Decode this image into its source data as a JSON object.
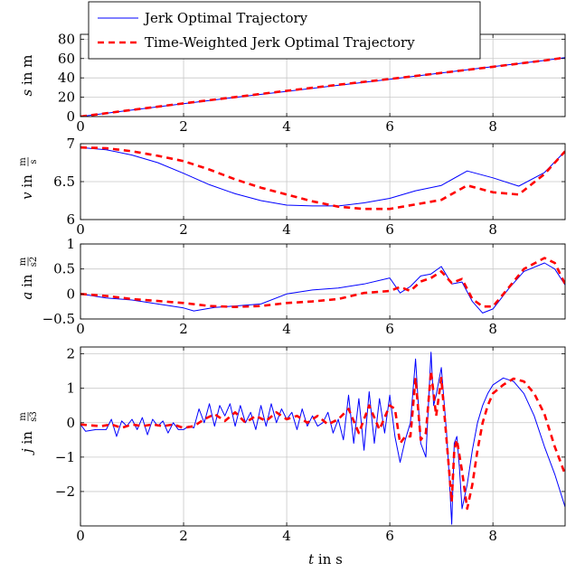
{
  "legend": [
    {
      "label": "Jerk Optimal Trajectory",
      "color": "#0000ff",
      "dash": false
    },
    {
      "label": "Time-Weighted Jerk Optimal Trajectory",
      "color": "#ff0000",
      "dash": true
    }
  ],
  "xaxis": {
    "label": "t",
    "unit": "s",
    "ticks": [
      "0",
      "2",
      "4",
      "6",
      "8"
    ]
  },
  "chart_data": [
    {
      "type": "line",
      "ylabel": {
        "var": "s",
        "unit": "m"
      },
      "xlim": [
        0,
        9.4
      ],
      "ylim": [
        0,
        85
      ],
      "yticks": [
        0,
        20,
        40,
        60,
        80
      ],
      "ytick_labels": [
        "0",
        "20",
        "40",
        "60",
        "80"
      ],
      "grid": true,
      "series": [
        {
          "name": "Jerk Optimal Trajectory",
          "color": "#0000ff",
          "x": [
            0,
            1,
            2,
            3,
            4,
            5,
            6,
            7,
            8,
            9,
            9.4
          ],
          "y": [
            0,
            6.8,
            13.4,
            19.8,
            26.1,
            32.3,
            38.6,
            45.1,
            51.6,
            58.0,
            61.0
          ]
        },
        {
          "name": "Time-Weighted Jerk Optimal Trajectory",
          "color": "#ff0000",
          "dashed": true,
          "x": [
            0,
            1,
            2,
            3,
            4,
            5,
            6,
            7,
            8,
            9,
            9.4
          ],
          "y": [
            0,
            6.9,
            13.6,
            20.2,
            26.6,
            32.9,
            38.9,
            45.1,
            51.5,
            58.0,
            61.0
          ]
        }
      ]
    },
    {
      "type": "line",
      "ylabel": {
        "var": "v",
        "unit_num": "m",
        "unit_den": "s"
      },
      "xlim": [
        0,
        9.4
      ],
      "ylim": [
        6,
        7
      ],
      "yticks": [
        6,
        6.5,
        7
      ],
      "ytick_labels": [
        "6",
        "6.5",
        "7"
      ],
      "grid": true,
      "series": [
        {
          "name": "Jerk Optimal Trajectory",
          "color": "#0000ff",
          "x": [
            0,
            0.5,
            1,
            1.5,
            2,
            2.5,
            3,
            3.5,
            4,
            4.5,
            5,
            5.5,
            6,
            6.5,
            7,
            7.5,
            8,
            8.5,
            9,
            9.4
          ],
          "y": [
            6.95,
            6.92,
            6.85,
            6.75,
            6.61,
            6.46,
            6.34,
            6.25,
            6.19,
            6.18,
            6.18,
            6.22,
            6.28,
            6.38,
            6.45,
            6.64,
            6.55,
            6.44,
            6.62,
            6.9
          ]
        },
        {
          "name": "Time-Weighted Jerk Optimal Trajectory",
          "color": "#ff0000",
          "dashed": true,
          "x": [
            0,
            0.5,
            1,
            1.5,
            2,
            2.5,
            3,
            3.5,
            4,
            4.5,
            5,
            5.5,
            6,
            6.5,
            7,
            7.5,
            8,
            8.5,
            9,
            9.4
          ],
          "y": [
            6.95,
            6.94,
            6.9,
            6.84,
            6.77,
            6.66,
            6.53,
            6.42,
            6.33,
            6.24,
            6.17,
            6.14,
            6.14,
            6.2,
            6.26,
            6.45,
            6.36,
            6.33,
            6.6,
            6.9
          ]
        }
      ]
    },
    {
      "type": "line",
      "ylabel": {
        "var": "a",
        "unit_num": "m",
        "unit_den": "s2"
      },
      "xlim": [
        0,
        9.4
      ],
      "ylim": [
        -0.5,
        1
      ],
      "yticks": [
        -0.5,
        0,
        0.5,
        1
      ],
      "ytick_labels": [
        "−0.5",
        "0",
        "0.5",
        "1"
      ],
      "grid": true,
      "series": [
        {
          "name": "Jerk Optimal Trajectory",
          "color": "#0000ff",
          "x": [
            0,
            0.5,
            1,
            1.5,
            2,
            2.2,
            2.6,
            3,
            3.5,
            4,
            4.5,
            5,
            5.5,
            6,
            6.2,
            6.4,
            6.6,
            6.8,
            7,
            7.2,
            7.4,
            7.6,
            7.8,
            8,
            8.3,
            8.6,
            9,
            9.2,
            9.4
          ],
          "y": [
            0,
            -0.08,
            -0.12,
            -0.2,
            -0.28,
            -0.34,
            -0.27,
            -0.24,
            -0.2,
            0,
            0.08,
            0.12,
            0.2,
            0.32,
            0.02,
            0.15,
            0.36,
            0.4,
            0.55,
            0.2,
            0.24,
            -0.15,
            -0.38,
            -0.3,
            0.1,
            0.45,
            0.62,
            0.5,
            0.18
          ]
        },
        {
          "name": "Time-Weighted Jerk Optimal Trajectory",
          "color": "#ff0000",
          "dashed": true,
          "x": [
            0,
            0.5,
            1,
            1.5,
            2,
            2.5,
            3,
            3.5,
            4,
            4.5,
            5,
            5.5,
            6,
            6.2,
            6.4,
            6.6,
            6.8,
            7,
            7.2,
            7.4,
            7.6,
            7.8,
            8,
            8.3,
            8.6,
            9,
            9.2,
            9.4
          ],
          "y": [
            0,
            -0.04,
            -0.1,
            -0.14,
            -0.18,
            -0.24,
            -0.26,
            -0.24,
            -0.18,
            -0.15,
            -0.1,
            0.02,
            0.06,
            0.14,
            0.06,
            0.25,
            0.32,
            0.45,
            0.22,
            0.3,
            -0.1,
            -0.25,
            -0.25,
            0.12,
            0.5,
            0.72,
            0.62,
            0.2
          ]
        }
      ]
    },
    {
      "type": "line",
      "ylabel": {
        "var": "j",
        "unit_num": "m",
        "unit_den": "s3"
      },
      "xlim": [
        0,
        9.4
      ],
      "ylim": [
        -3,
        2.2
      ],
      "yticks": [
        -2,
        -1,
        0,
        1,
        2
      ],
      "ytick_labels": [
        "−2",
        "−1",
        "0",
        "1",
        "2"
      ],
      "grid": true,
      "series": [
        {
          "name": "Jerk Optimal Trajectory",
          "color": "#0000ff",
          "x": [
            0,
            0.1,
            0.3,
            0.5,
            0.6,
            0.7,
            0.8,
            0.9,
            1.0,
            1.1,
            1.2,
            1.3,
            1.4,
            1.5,
            1.6,
            1.7,
            1.8,
            1.9,
            2.0,
            2.1,
            2.2,
            2.3,
            2.4,
            2.5,
            2.6,
            2.7,
            2.8,
            2.9,
            3.0,
            3.1,
            3.2,
            3.3,
            3.4,
            3.5,
            3.6,
            3.7,
            3.8,
            3.9,
            4.0,
            4.1,
            4.2,
            4.3,
            4.4,
            4.5,
            4.6,
            4.7,
            4.8,
            4.9,
            5.0,
            5.1,
            5.2,
            5.3,
            5.4,
            5.5,
            5.6,
            5.7,
            5.8,
            5.9,
            6.0,
            6.1,
            6.2,
            6.3,
            6.4,
            6.5,
            6.6,
            6.7,
            6.8,
            6.85,
            6.9,
            7.0,
            7.1,
            7.15,
            7.2,
            7.25,
            7.3,
            7.35,
            7.4,
            7.5,
            7.6,
            7.7,
            7.8,
            7.9,
            8.0,
            8.2,
            8.4,
            8.6,
            8.8,
            9.0,
            9.2,
            9.4
          ],
          "y": [
            -0.05,
            -0.25,
            -0.2,
            -0.2,
            0.1,
            -0.4,
            0.05,
            -0.1,
            0.1,
            -0.2,
            0.15,
            -0.35,
            0.1,
            -0.1,
            0.05,
            -0.3,
            0.0,
            -0.2,
            -0.2,
            -0.1,
            -0.15,
            0.4,
            0.0,
            0.55,
            -0.1,
            0.5,
            0.2,
            0.55,
            -0.1,
            0.5,
            0.0,
            0.3,
            -0.2,
            0.5,
            -0.1,
            0.55,
            0.0,
            0.4,
            0.1,
            0.3,
            -0.2,
            0.4,
            -0.1,
            0.2,
            -0.1,
            0.0,
            0.3,
            -0.3,
            0.1,
            -0.5,
            0.8,
            -0.6,
            0.7,
            -0.8,
            0.9,
            -0.6,
            0.7,
            -0.3,
            0.8,
            -0.4,
            -1.15,
            -0.5,
            0.0,
            1.85,
            -0.6,
            -1.0,
            2.05,
            0.5,
            0.8,
            1.6,
            -0.3,
            -1.5,
            -2.95,
            -0.6,
            -0.4,
            -1.3,
            -2.5,
            -1.8,
            -0.8,
            0.0,
            0.5,
            0.85,
            1.1,
            1.3,
            1.2,
            0.85,
            0.2,
            -0.7,
            -1.5,
            -2.45
          ]
        },
        {
          "name": "Time-Weighted Jerk Optimal Trajectory",
          "color": "#ff0000",
          "dashed": true,
          "x": [
            0,
            0.2,
            0.4,
            0.6,
            0.8,
            1.0,
            1.2,
            1.4,
            1.6,
            1.8,
            2.0,
            2.2,
            2.4,
            2.6,
            2.8,
            3.0,
            3.2,
            3.4,
            3.6,
            3.8,
            4.0,
            4.2,
            4.4,
            4.6,
            4.8,
            5.0,
            5.2,
            5.4,
            5.6,
            5.8,
            6.0,
            6.1,
            6.2,
            6.3,
            6.4,
            6.5,
            6.6,
            6.7,
            6.8,
            6.9,
            7.0,
            7.1,
            7.2,
            7.25,
            7.3,
            7.4,
            7.5,
            7.6,
            7.7,
            7.8,
            7.9,
            8.0,
            8.2,
            8.4,
            8.6,
            8.8,
            9.0,
            9.2,
            9.4
          ],
          "y": [
            -0.05,
            -0.08,
            -0.1,
            -0.05,
            -0.15,
            -0.05,
            -0.1,
            -0.05,
            -0.1,
            -0.05,
            -0.15,
            -0.1,
            0.1,
            0.25,
            0.05,
            0.3,
            0.0,
            0.2,
            0.05,
            0.3,
            0.1,
            0.2,
            0.0,
            0.2,
            -0.05,
            0.1,
            0.4,
            -0.3,
            0.5,
            -0.2,
            0.5,
            0.4,
            -0.6,
            -0.4,
            -0.4,
            1.3,
            -0.5,
            -0.3,
            1.5,
            0.2,
            1.3,
            -0.5,
            -2.3,
            -0.8,
            -0.5,
            -1.4,
            -2.5,
            -1.8,
            -0.8,
            0.0,
            0.5,
            0.85,
            1.1,
            1.28,
            1.2,
            0.85,
            0.25,
            -0.7,
            -1.5
          ]
        }
      ]
    }
  ]
}
